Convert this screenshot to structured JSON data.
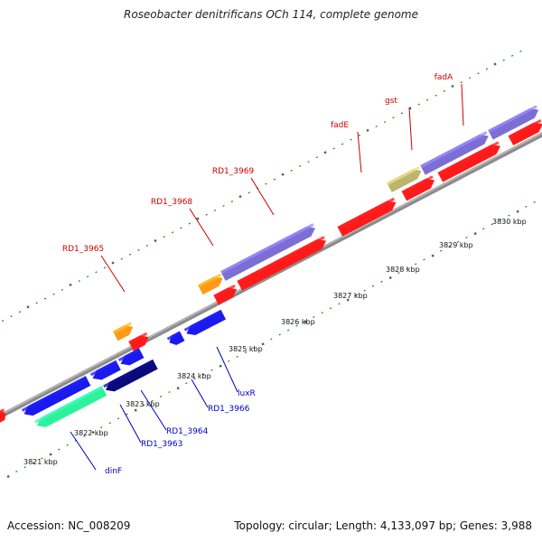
{
  "title": "Roseobacter denitrificans OCh 114, complete genome",
  "footer": {
    "accession": "Accession: NC_008209",
    "stats": "Topology: circular; Length: 4,133,097 bp; Genes: 3,988"
  },
  "scale_labels": [
    "3821 kbp",
    "3822 kbp",
    "3823 kbp",
    "3824 kbp",
    "3825 kbp",
    "3826 kbp",
    "3827 kbp",
    "3828 kbp",
    "3829 kbp",
    "3830 kbp"
  ],
  "gene_labels": {
    "forward": [
      "RD1_3965",
      "RD1_3968",
      "RD1_3969",
      "fadE",
      "gst",
      "fadA"
    ],
    "reverse": [
      "dinF",
      "RD1_3963",
      "RD1_3964",
      "RD1_3966",
      "luxR"
    ]
  },
  "colors": {
    "forward_red": "#ff1a1a",
    "purple": "#7b6fd6",
    "orange": "#ff9a1a",
    "khaki": "#bdb56b",
    "blue": "#1a1aee",
    "navy": "#0a0a7a",
    "teal": "#2ef29a",
    "cyan": "#22b8d8",
    "tick_green": "#2a7a2a",
    "backbone": "#8c8c8c",
    "label_red": "#cc0000",
    "label_blue": "#0000bb"
  }
}
